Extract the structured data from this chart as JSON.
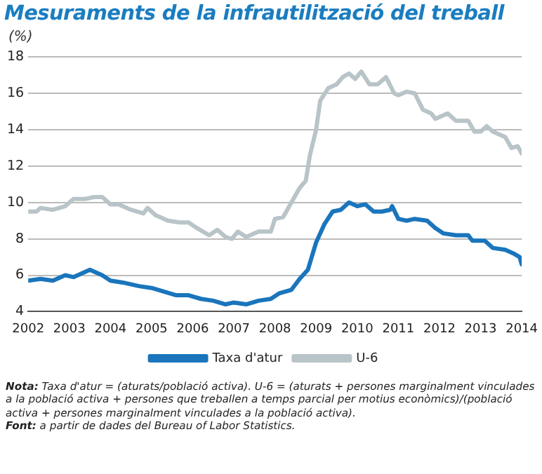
{
  "chart_data": {
    "type": "line",
    "title": "Mesuraments de la infrautilització del treball",
    "ylabel": "(%)",
    "xlim": [
      2002,
      2014
    ],
    "xticks": [
      2002,
      2003,
      2004,
      2005,
      2006,
      2007,
      2008,
      2009,
      2010,
      2011,
      2012,
      2013,
      2014
    ],
    "ylim": [
      4,
      18
    ],
    "yticks": [
      4,
      6,
      8,
      10,
      12,
      14,
      16,
      18
    ],
    "grid": "y",
    "legend": "bottom",
    "marker": "none",
    "line_style": "solid",
    "series": [
      {
        "name": "Taxa d'atur",
        "color": "#1a75bc",
        "x": [
          2002.0,
          2002.3,
          2002.6,
          2002.9,
          2003.1,
          2003.5,
          2003.8,
          2004.0,
          2004.3,
          2004.7,
          2005.0,
          2005.3,
          2005.6,
          2005.9,
          2006.2,
          2006.5,
          2006.8,
          2007.0,
          2007.3,
          2007.6,
          2007.9,
          2008.1,
          2008.4,
          2008.6,
          2008.8,
          2009.0,
          2009.2,
          2009.4,
          2009.6,
          2009.8,
          2010.0,
          2010.2,
          2010.4,
          2010.6,
          2010.8,
          2010.85,
          2011.0,
          2011.2,
          2011.4,
          2011.7,
          2011.9,
          2012.1,
          2012.4,
          2012.7,
          2012.8,
          2013.1,
          2013.3,
          2013.6,
          2013.8,
          2013.95,
          2014.0
        ],
        "values": [
          5.7,
          5.8,
          5.7,
          6.0,
          5.9,
          6.3,
          6.0,
          5.7,
          5.6,
          5.4,
          5.3,
          5.1,
          4.9,
          4.9,
          4.7,
          4.6,
          4.4,
          4.5,
          4.4,
          4.6,
          4.7,
          5.0,
          5.2,
          5.8,
          6.3,
          7.8,
          8.8,
          9.5,
          9.6,
          10.0,
          9.8,
          9.9,
          9.5,
          9.5,
          9.6,
          9.8,
          9.1,
          9.0,
          9.1,
          9.0,
          8.6,
          8.3,
          8.2,
          8.2,
          7.9,
          7.9,
          7.5,
          7.4,
          7.2,
          7.0,
          6.6
        ]
      },
      {
        "name": "U-6",
        "color": "#b8c4c8",
        "x": [
          2002.0,
          2002.2,
          2002.3,
          2002.6,
          2002.9,
          2003.1,
          2003.4,
          2003.6,
          2003.8,
          2004.0,
          2004.2,
          2004.5,
          2004.8,
          2004.9,
          2005.1,
          2005.4,
          2005.7,
          2005.9,
          2006.1,
          2006.4,
          2006.6,
          2006.8,
          2006.95,
          2007.1,
          2007.3,
          2007.6,
          2007.9,
          2008.0,
          2008.2,
          2008.4,
          2008.6,
          2008.75,
          2008.85,
          2009.0,
          2009.1,
          2009.3,
          2009.5,
          2009.65,
          2009.8,
          2009.95,
          2010.1,
          2010.3,
          2010.5,
          2010.7,
          2010.9,
          2011.0,
          2011.2,
          2011.4,
          2011.6,
          2011.8,
          2011.9,
          2012.2,
          2012.4,
          2012.7,
          2012.85,
          2013.0,
          2013.15,
          2013.3,
          2013.6,
          2013.75,
          2013.9,
          2014.0
        ],
        "values": [
          9.5,
          9.5,
          9.7,
          9.6,
          9.8,
          10.2,
          10.2,
          10.3,
          10.3,
          9.9,
          9.9,
          9.6,
          9.4,
          9.7,
          9.3,
          9.0,
          8.9,
          8.9,
          8.6,
          8.2,
          8.5,
          8.1,
          8.0,
          8.4,
          8.1,
          8.4,
          8.4,
          9.1,
          9.2,
          10.0,
          10.8,
          11.2,
          12.6,
          14.0,
          15.6,
          16.3,
          16.5,
          16.9,
          17.1,
          16.8,
          17.2,
          16.5,
          16.5,
          16.9,
          16.0,
          15.9,
          16.1,
          16.0,
          15.1,
          14.9,
          14.6,
          14.9,
          14.5,
          14.5,
          13.9,
          13.9,
          14.2,
          13.9,
          13.6,
          13.0,
          13.1,
          12.7
        ]
      }
    ],
    "annotations": [
      "Nota: Taxa d'atur = (aturats/població activa). U-6 = (aturats + persones marginalment vinculades a la població activa + persones que treballen a temps parcial per motius econòmics)/(població activa + persones marginalment vinculades a la població activa).",
      "Font: a partir de dades del Bureau of Labor Statistics."
    ]
  }
}
